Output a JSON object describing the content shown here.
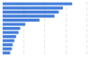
{
  "chart_data": {
    "type": "bar",
    "orientation": "horizontal",
    "categories": [
      null,
      null,
      null,
      null,
      null,
      null,
      null,
      null,
      null,
      null,
      null,
      null,
      null
    ],
    "values": [
      83,
      72,
      67,
      62,
      44,
      27,
      21,
      19,
      16,
      14,
      12,
      11,
      9
    ],
    "color": "#3b78d8",
    "xlim": [
      0,
      100
    ],
    "xticks": [
      0,
      25,
      50,
      75,
      100
    ],
    "grid": true,
    "tick_labels": false
  }
}
